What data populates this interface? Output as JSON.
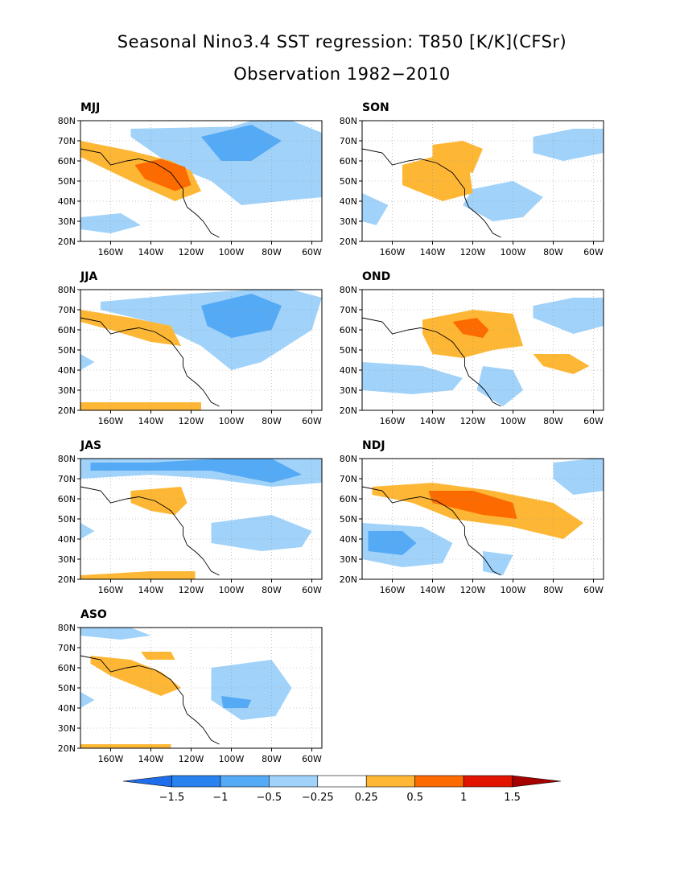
{
  "figure": {
    "title": "Seasonal Nino3.4 SST regression: T850 [K/K](CFSr)",
    "subtitle": "Observation 1982−2010"
  },
  "chart_data": [
    {
      "type": "heatmap",
      "panel": "MJJ",
      "x_ticks": [
        "160W",
        "140W",
        "120W",
        "100W",
        "80W",
        "60W"
      ],
      "y_ticks": [
        "20N",
        "30N",
        "40N",
        "50N",
        "60N",
        "70N",
        "80N"
      ],
      "xlim": [
        -175,
        -55
      ],
      "ylim": [
        20,
        80
      ],
      "contours": [
        {
          "level": -0.25,
          "color": "#a0d2fa",
          "lon": [
            -150,
            -100,
            -90,
            -70,
            -55,
            -55,
            -95,
            -110,
            -130,
            -150
          ],
          "lat": [
            76,
            77,
            80,
            80,
            74,
            42,
            38,
            50,
            58,
            72
          ]
        },
        {
          "level": -0.5,
          "color": "#55aaf5",
          "lon": [
            -115,
            -90,
            -75,
            -90,
            -105
          ],
          "lat": [
            72,
            78,
            70,
            60,
            60
          ]
        },
        {
          "level": -0.25,
          "color": "#a0d2fa",
          "lon": [
            -175,
            -155,
            -145,
            -160,
            -175
          ],
          "lat": [
            32,
            34,
            28,
            24,
            26
          ]
        },
        {
          "level": 0.25,
          "color": "#fdb735",
          "lon": [
            -175,
            -150,
            -130,
            -120,
            -115,
            -128,
            -150,
            -175
          ],
          "lat": [
            70,
            65,
            60,
            55,
            45,
            40,
            50,
            62
          ]
        },
        {
          "level": 0.5,
          "color": "#fd6a00",
          "lon": [
            -148,
            -135,
            -123,
            -120,
            -128,
            -143
          ],
          "lat": [
            58,
            61,
            57,
            48,
            45,
            51
          ]
        }
      ]
    },
    {
      "type": "heatmap",
      "panel": "SON",
      "x_ticks": [
        "160W",
        "140W",
        "120W",
        "100W",
        "80W",
        "60W"
      ],
      "y_ticks": [
        "20N",
        "30N",
        "40N",
        "50N",
        "60N",
        "70N",
        "80N"
      ],
      "xlim": [
        -175,
        -55
      ],
      "ylim": [
        20,
        80
      ],
      "contours": [
        {
          "level": -0.25,
          "color": "#a0d2fa",
          "lon": [
            -90,
            -70,
            -55,
            -55,
            -75,
            -90
          ],
          "lat": [
            72,
            76,
            76,
            64,
            60,
            64
          ]
        },
        {
          "level": -0.25,
          "color": "#a0d2fa",
          "lon": [
            -120,
            -100,
            -85,
            -95,
            -110,
            -125
          ],
          "lat": [
            46,
            50,
            42,
            32,
            30,
            38
          ]
        },
        {
          "level": -0.25,
          "color": "#a0d2fa",
          "lon": [
            -175,
            -162,
            -168,
            -175
          ],
          "lat": [
            44,
            38,
            28,
            30
          ]
        },
        {
          "level": 0.25,
          "color": "#fdb735",
          "lon": [
            -140,
            -125,
            -115,
            -120,
            -130,
            -140
          ],
          "lat": [
            68,
            70,
            66,
            54,
            56,
            62
          ]
        },
        {
          "level": 0.25,
          "color": "#fdb735",
          "lon": [
            -155,
            -140,
            -122,
            -120,
            -135,
            -155
          ],
          "lat": [
            58,
            62,
            58,
            44,
            40,
            48
          ]
        }
      ]
    },
    {
      "type": "heatmap",
      "panel": "JJA",
      "x_ticks": [
        "160W",
        "140W",
        "120W",
        "100W",
        "80W",
        "60W"
      ],
      "y_ticks": [
        "20N",
        "30N",
        "40N",
        "50N",
        "60N",
        "70N",
        "80N"
      ],
      "xlim": [
        -175,
        -55
      ],
      "ylim": [
        20,
        80
      ],
      "contours": [
        {
          "level": -0.25,
          "color": "#a0d2fa",
          "lon": [
            -165,
            -120,
            -90,
            -70,
            -55,
            -60,
            -85,
            -100,
            -115,
            -140,
            -165
          ],
          "lat": [
            74,
            78,
            80,
            80,
            76,
            60,
            44,
            40,
            52,
            64,
            70
          ]
        },
        {
          "level": -0.5,
          "color": "#55aaf5",
          "lon": [
            -115,
            -90,
            -75,
            -80,
            -100,
            -112
          ],
          "lat": [
            72,
            78,
            72,
            60,
            56,
            62
          ]
        },
        {
          "level": -0.25,
          "color": "#a0d2fa",
          "lon": [
            -175,
            -168,
            -175
          ],
          "lat": [
            48,
            44,
            40
          ]
        },
        {
          "level": 0.25,
          "color": "#fdb735",
          "lon": [
            -175,
            -150,
            -130,
            -125,
            -140,
            -160,
            -175
          ],
          "lat": [
            70,
            66,
            62,
            52,
            54,
            60,
            64
          ]
        },
        {
          "level": 0.25,
          "color": "#fdb735",
          "lon": [
            -175,
            -140,
            -115,
            -115,
            -140,
            -175
          ],
          "lat": [
            24,
            24,
            24,
            20,
            20,
            20
          ]
        }
      ]
    },
    {
      "type": "heatmap",
      "panel": "OND",
      "x_ticks": [
        "160W",
        "140W",
        "120W",
        "100W",
        "80W",
        "60W"
      ],
      "y_ticks": [
        "20N",
        "30N",
        "40N",
        "50N",
        "60N",
        "70N",
        "80N"
      ],
      "xlim": [
        -175,
        -55
      ],
      "ylim": [
        20,
        80
      ],
      "contours": [
        {
          "level": -0.25,
          "color": "#a0d2fa",
          "lon": [
            -90,
            -70,
            -55,
            -55,
            -70,
            -90
          ],
          "lat": [
            72,
            76,
            76,
            62,
            58,
            66
          ]
        },
        {
          "level": -0.25,
          "color": "#a0d2fa",
          "lon": [
            -175,
            -145,
            -125,
            -130,
            -150,
            -175
          ],
          "lat": [
            44,
            42,
            36,
            30,
            28,
            30
          ]
        },
        {
          "level": -0.25,
          "color": "#a0d2fa",
          "lon": [
            -115,
            -100,
            -95,
            -105,
            -118
          ],
          "lat": [
            42,
            40,
            30,
            22,
            30
          ]
        },
        {
          "level": 0.25,
          "color": "#fdb735",
          "lon": [
            -145,
            -120,
            -100,
            -95,
            -110,
            -125,
            -140,
            -145
          ],
          "lat": [
            65,
            70,
            68,
            52,
            50,
            46,
            48,
            58
          ]
        },
        {
          "level": 0.5,
          "color": "#fd6a00",
          "lon": [
            -130,
            -118,
            -112,
            -115,
            -125
          ],
          "lat": [
            64,
            66,
            60,
            56,
            58
          ]
        },
        {
          "level": 0.25,
          "color": "#fdb735",
          "lon": [
            -90,
            -72,
            -62,
            -70,
            -85
          ],
          "lat": [
            48,
            48,
            42,
            38,
            42
          ]
        }
      ]
    },
    {
      "type": "heatmap",
      "panel": "JAS",
      "x_ticks": [
        "160W",
        "140W",
        "120W",
        "100W",
        "80W",
        "60W"
      ],
      "y_ticks": [
        "20N",
        "30N",
        "40N",
        "50N",
        "60N",
        "70N",
        "80N"
      ],
      "xlim": [
        -175,
        -55
      ],
      "ylim": [
        20,
        80
      ],
      "contours": [
        {
          "level": -0.25,
          "color": "#a0d2fa",
          "lon": [
            -175,
            -55,
            -55,
            -80,
            -110,
            -140,
            -175
          ],
          "lat": [
            80,
            80,
            68,
            66,
            70,
            72,
            70
          ]
        },
        {
          "level": -0.5,
          "color": "#55aaf5",
          "lon": [
            -170,
            -140,
            -105,
            -80,
            -65,
            -80,
            -110,
            -145,
            -170
          ],
          "lat": [
            78,
            78,
            80,
            80,
            72,
            68,
            74,
            74,
            74
          ]
        },
        {
          "level": -0.25,
          "color": "#a0d2fa",
          "lon": [
            -110,
            -80,
            -60,
            -65,
            -85,
            -110
          ],
          "lat": [
            48,
            52,
            44,
            36,
            34,
            38
          ]
        },
        {
          "level": -0.25,
          "color": "#a0d2fa",
          "lon": [
            -175,
            -168,
            -175
          ],
          "lat": [
            48,
            44,
            40
          ]
        },
        {
          "level": 0.25,
          "color": "#fdb735",
          "lon": [
            -150,
            -125,
            -122,
            -128,
            -140,
            -150
          ],
          "lat": [
            64,
            66,
            58,
            52,
            54,
            58
          ]
        },
        {
          "level": 0.25,
          "color": "#fdb735",
          "lon": [
            -175,
            -140,
            -118,
            -118,
            -140,
            -175
          ],
          "lat": [
            22,
            24,
            24,
            20,
            20,
            20
          ]
        }
      ]
    },
    {
      "type": "heatmap",
      "panel": "NDJ",
      "x_ticks": [
        "160W",
        "140W",
        "120W",
        "100W",
        "80W",
        "60W"
      ],
      "y_ticks": [
        "20N",
        "30N",
        "40N",
        "50N",
        "60N",
        "70N",
        "80N"
      ],
      "xlim": [
        -175,
        -55
      ],
      "ylim": [
        20,
        80
      ],
      "contours": [
        {
          "level": -0.25,
          "color": "#a0d2fa",
          "lon": [
            -80,
            -60,
            -55,
            -55,
            -70,
            -80
          ],
          "lat": [
            78,
            80,
            80,
            64,
            62,
            70
          ]
        },
        {
          "level": -0.25,
          "color": "#a0d2fa",
          "lon": [
            -175,
            -145,
            -130,
            -135,
            -155,
            -175
          ],
          "lat": [
            48,
            46,
            38,
            28,
            26,
            30
          ]
        },
        {
          "level": -0.5,
          "color": "#55aaf5",
          "lon": [
            -172,
            -155,
            -148,
            -155,
            -172
          ],
          "lat": [
            44,
            44,
            38,
            32,
            34
          ]
        },
        {
          "level": -0.25,
          "color": "#a0d2fa",
          "lon": [
            -115,
            -100,
            -105,
            -115
          ],
          "lat": [
            34,
            32,
            22,
            24
          ]
        },
        {
          "level": 0.25,
          "color": "#fdb735",
          "lon": [
            -170,
            -140,
            -110,
            -80,
            -65,
            -75,
            -100,
            -130,
            -150,
            -170
          ],
          "lat": [
            66,
            68,
            64,
            58,
            48,
            40,
            46,
            50,
            58,
            62
          ]
        },
        {
          "level": 0.5,
          "color": "#fd6a00",
          "lon": [
            -142,
            -120,
            -100,
            -98,
            -115,
            -140
          ],
          "lat": [
            64,
            64,
            58,
            50,
            52,
            58
          ]
        }
      ]
    },
    {
      "type": "heatmap",
      "panel": "ASO",
      "x_ticks": [
        "160W",
        "140W",
        "120W",
        "100W",
        "80W",
        "60W"
      ],
      "y_ticks": [
        "20N",
        "30N",
        "40N",
        "50N",
        "60N",
        "70N",
        "80N"
      ],
      "xlim": [
        -175,
        -55
      ],
      "ylim": [
        20,
        80
      ],
      "contours": [
        {
          "level": -0.25,
          "color": "#a0d2fa",
          "lon": [
            -175,
            -150,
            -140,
            -155,
            -175
          ],
          "lat": [
            80,
            80,
            76,
            74,
            76
          ]
        },
        {
          "level": -0.25,
          "color": "#a0d2fa",
          "lon": [
            -110,
            -80,
            -70,
            -78,
            -95,
            -110
          ],
          "lat": [
            60,
            64,
            50,
            36,
            34,
            44
          ]
        },
        {
          "level": -0.5,
          "color": "#55aaf5",
          "lon": [
            -105,
            -90,
            -92,
            -104
          ],
          "lat": [
            46,
            44,
            40,
            40
          ]
        },
        {
          "level": -0.25,
          "color": "#a0d2fa",
          "lon": [
            -175,
            -168,
            -175
          ],
          "lat": [
            48,
            44,
            40
          ]
        },
        {
          "level": 0.25,
          "color": "#fdb735",
          "lon": [
            -170,
            -150,
            -135,
            -125,
            -135,
            -160,
            -170
          ],
          "lat": [
            66,
            64,
            58,
            50,
            46,
            56,
            62
          ]
        },
        {
          "level": 0.25,
          "color": "#fdb735",
          "lon": [
            -145,
            -130,
            -128,
            -142
          ],
          "lat": [
            68,
            68,
            64,
            64
          ]
        },
        {
          "level": 0.25,
          "color": "#fdb735",
          "lon": [
            -175,
            -150,
            -130,
            -130,
            -150,
            -175
          ],
          "lat": [
            22,
            22,
            22,
            20,
            20,
            20
          ]
        }
      ]
    }
  ],
  "colorbar": {
    "labels": [
      "−1.5",
      "−1",
      "−0.5",
      "−0.25",
      "0.25",
      "0.5",
      "1",
      "1.5"
    ],
    "colors": [
      "#1e6eeb",
      "#2882f0",
      "#55aaf5",
      "#a0d2fa",
      "#ffffff",
      "#fdb735",
      "#fd6a00",
      "#e11400",
      "#a50000"
    ]
  },
  "coastline": [
    [
      -175,
      66
    ],
    [
      -165,
      64
    ],
    [
      -160,
      58
    ],
    [
      -152,
      60
    ],
    [
      -146,
      61
    ],
    [
      -138,
      59
    ],
    [
      -133,
      56
    ],
    [
      -130,
      54
    ],
    [
      -127,
      50
    ],
    [
      -124,
      46
    ],
    [
      -124,
      42
    ],
    [
      -122,
      37
    ],
    [
      -117,
      33
    ],
    [
      -114,
      30
    ],
    [
      -110,
      24
    ],
    [
      -106,
      22
    ]
  ]
}
